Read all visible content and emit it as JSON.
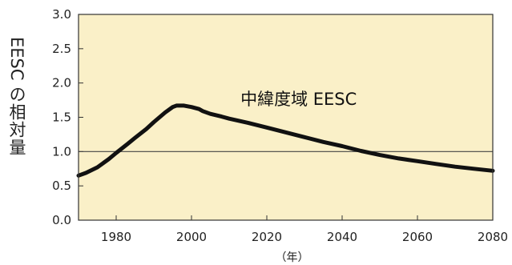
{
  "chart_data": {
    "type": "line",
    "title": "",
    "xlabel": "（年）",
    "ylabel": "EESC の相対量",
    "xlim": [
      1970,
      2080
    ],
    "ylim": [
      0,
      3.0
    ],
    "x_ticks": [
      1980,
      2000,
      2020,
      2040,
      2060,
      2080
    ],
    "x_tick_labels": [
      "1980",
      "2000",
      "2020",
      "2040",
      "2060",
      "2080"
    ],
    "y_ticks": [
      0.0,
      0.5,
      1.0,
      1.5,
      2.0,
      2.5,
      3.0
    ],
    "y_tick_labels": [
      "0.0",
      "0.5",
      "1.0",
      "1.5",
      "2.0",
      "2.5",
      "3.0"
    ],
    "reference_line": 1.0,
    "grid": false,
    "colors": {
      "plot_background": "#faf0c8",
      "line": "#111111",
      "reference": "#444444"
    },
    "series": [
      {
        "name": "中緯度域 EESC",
        "x": [
          1970,
          1972,
          1975,
          1978,
          1980,
          1983,
          1985,
          1988,
          1990,
          1993,
          1995,
          1996,
          1997,
          1998,
          2000,
          2002,
          2003,
          2005,
          2008,
          2010,
          2015,
          2020,
          2025,
          2030,
          2035,
          2040,
          2045,
          2050,
          2055,
          2060,
          2065,
          2070,
          2075,
          2080
        ],
        "values": [
          0.65,
          0.69,
          0.77,
          0.89,
          0.98,
          1.11,
          1.2,
          1.33,
          1.43,
          1.57,
          1.65,
          1.67,
          1.67,
          1.67,
          1.65,
          1.62,
          1.59,
          1.55,
          1.51,
          1.48,
          1.42,
          1.35,
          1.28,
          1.21,
          1.14,
          1.08,
          1.01,
          0.95,
          0.9,
          0.86,
          0.82,
          0.78,
          0.75,
          0.72
        ]
      }
    ],
    "annotation": "中緯度域 EESC"
  }
}
